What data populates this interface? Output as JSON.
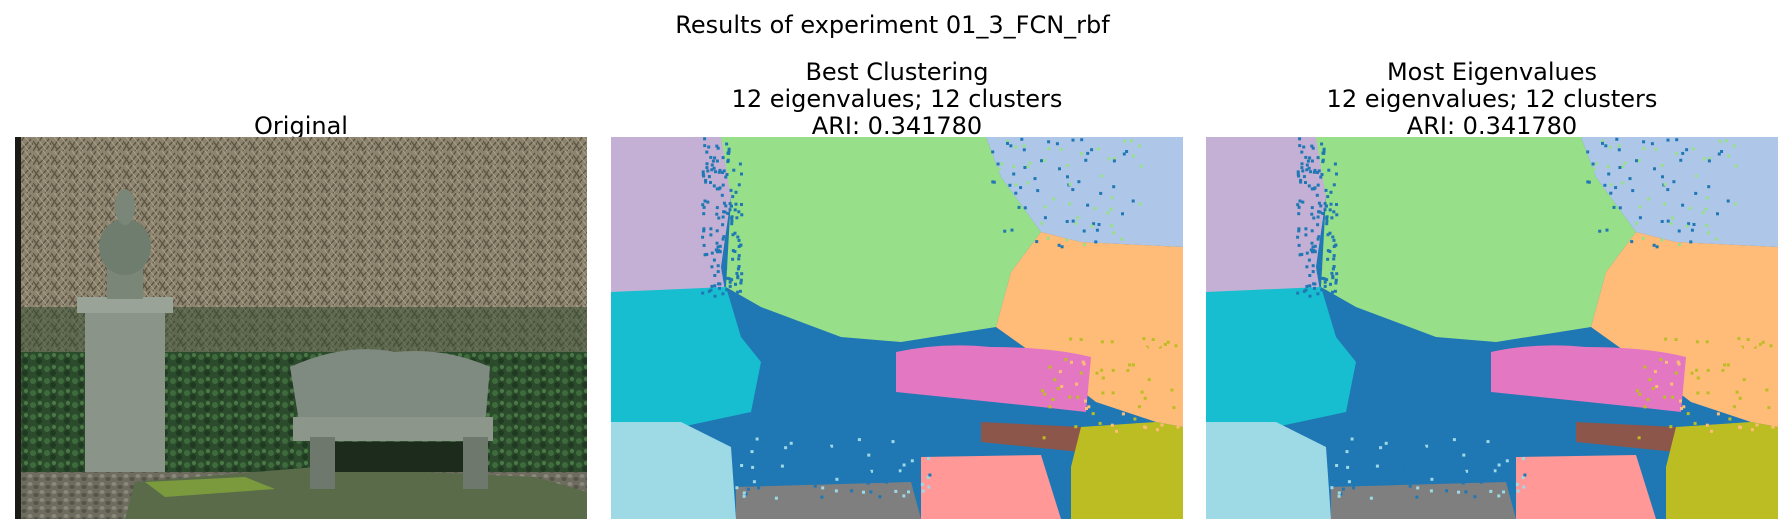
{
  "figure": {
    "suptitle": "Results of experiment 01_3_FCN_rbf"
  },
  "panels": [
    {
      "title_lines": [
        "Original"
      ],
      "image": "photo of a stone bench and pedestal urn in front of bare brush, with ivy and cobblestones"
    },
    {
      "title_lines": [
        "Best Clustering",
        "12 eigenvalues; 12 clusters",
        "ARI: 0.341780"
      ],
      "image": "segmentation map"
    },
    {
      "title_lines": [
        "Most Eigenvalues",
        "12 eigenvalues; 12 clusters",
        "ARI: 0.341780"
      ],
      "image": "segmentation map"
    }
  ],
  "cluster_colors": [
    "#c5b0d5",
    "#98df8a",
    "#aec7e8",
    "#ffbb78",
    "#17becf",
    "#1f77b4",
    "#e377c2",
    "#8c564b",
    "#9edae5",
    "#7f7f7f",
    "#ff9896",
    "#bcbd22"
  ]
}
